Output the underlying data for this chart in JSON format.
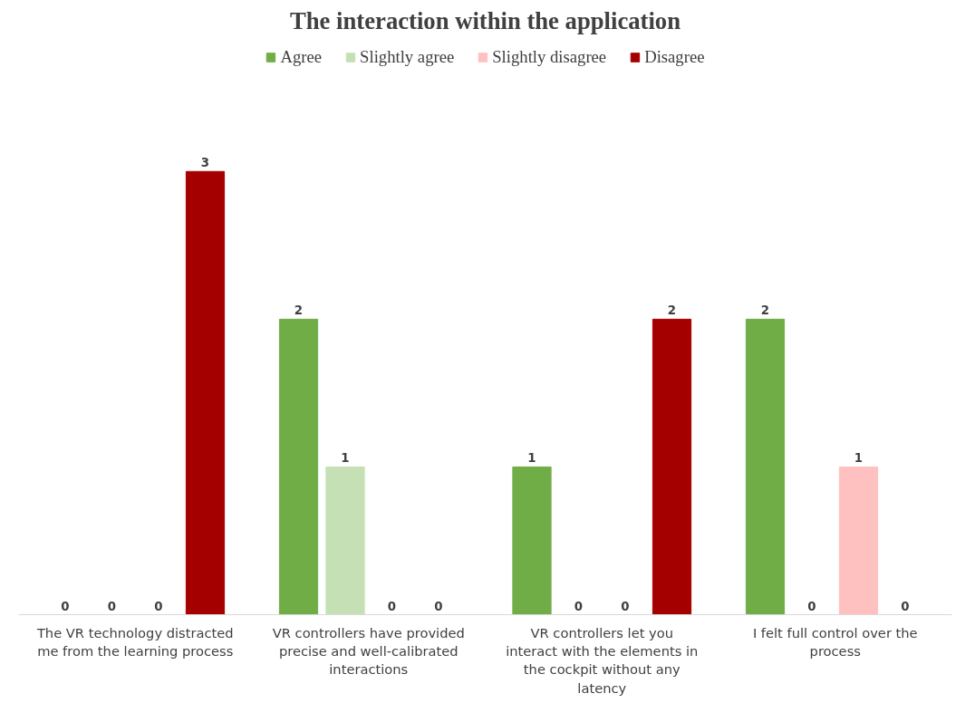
{
  "chart_data": {
    "type": "bar",
    "title": "The interaction within the application",
    "categories": [
      "The VR technology distracted me from the learning process",
      "VR controllers have provided precise and well-calibrated interactions",
      "VR controllers let you interact with the elements in the cockpit without any latency",
      "I felt full control over the process"
    ],
    "series": [
      {
        "name": "Agree",
        "color": "#70ad47",
        "values": [
          0,
          2,
          1,
          2
        ]
      },
      {
        "name": "Slightly agree",
        "color": "#c5e0b4",
        "values": [
          0,
          1,
          0,
          0
        ]
      },
      {
        "name": "Slightly disagree",
        "color": "#ffc0c0",
        "values": [
          0,
          0,
          0,
          1
        ]
      },
      {
        "name": "Disagree",
        "color": "#a50000",
        "values": [
          3,
          0,
          2,
          0
        ]
      }
    ],
    "data_labels": true,
    "legend": "top",
    "grid": false
  }
}
